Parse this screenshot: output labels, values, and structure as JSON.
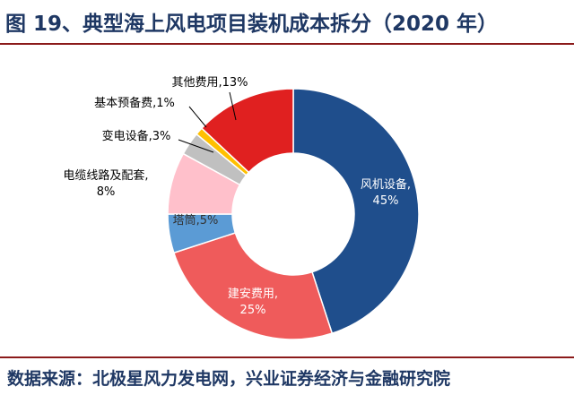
{
  "header": {
    "title": "图 19、典型海上风电项目装机成本拆分（2020 年）"
  },
  "footer": {
    "source": "数据来源：北极星风力发电网，兴业证券经济与金融研究院"
  },
  "colors": {
    "title_text": "#1f3864",
    "rule": "#8b1a1a"
  },
  "chart_data": {
    "type": "pie",
    "subtype": "donut",
    "categories": [
      "风机设备",
      "建安费用",
      "塔筒",
      "电缆线路及配套",
      "变电设备",
      "基本预备费",
      "其他费用"
    ],
    "values": [
      45,
      25,
      5,
      8,
      3,
      1,
      13
    ],
    "labels": [
      [
        "风机设备,",
        "45%"
      ],
      [
        "建安费用,",
        "25%"
      ],
      [
        "塔筒,5%"
      ],
      [
        "电缆线路及配套,",
        "8%"
      ],
      [
        "变电设备,3%"
      ],
      [
        "基本预备费,1%"
      ],
      [
        "其他费用,13%"
      ]
    ],
    "colors": [
      "#1f4e8c",
      "#ef5b5b",
      "#5b9bd5",
      "#ffc0cb",
      "#c0c0c0",
      "#ffc000",
      "#e02020"
    ],
    "legend": "none"
  }
}
